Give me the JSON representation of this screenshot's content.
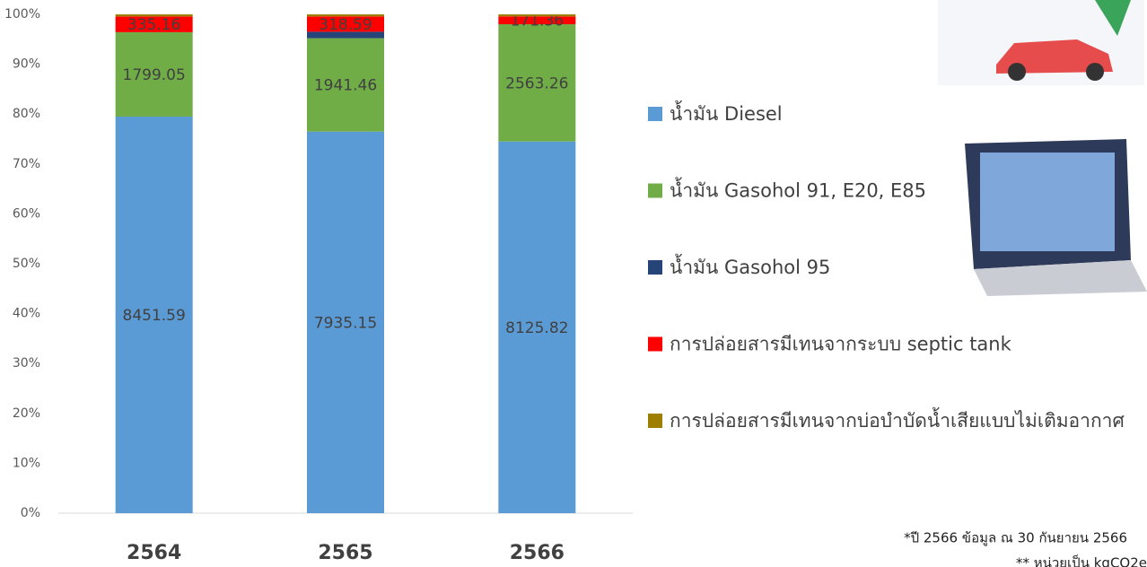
{
  "chart_data": {
    "type": "stacked-percent-bar",
    "categories": [
      "2564",
      "2565",
      "2566"
    ],
    "series": [
      {
        "name": "น้ำมัน Diesel",
        "color": "#5b9bd5",
        "values": [
          8451.59,
          7935.15,
          8125.82
        ],
        "show_labels": true
      },
      {
        "name": "น้ำมัน Gasohol 91, E20, E85",
        "color": "#70ad47",
        "values": [
          1799.05,
          1941.46,
          2563.26
        ],
        "show_labels": true
      },
      {
        "name": "น้ำมัน Gasohol 95",
        "color": "#264478",
        "values": [
          0,
          135,
          0
        ],
        "show_labels": false
      },
      {
        "name": "การปล่อยสารมีเทนจากระบบ septic tank",
        "color": "#ff0000",
        "values": [
          335.16,
          318.59,
          171.36
        ],
        "show_labels": true
      },
      {
        "name": "การปล่อยสารมีเทนจากบ่อบำบัดน้ำเสียแบบไม่เติมอากาศ",
        "color": "#9e7e00",
        "values": [
          45,
          43,
          45
        ],
        "show_labels": false
      }
    ],
    "ylim": [
      0,
      100
    ],
    "yticks": [
      {
        "value": 0,
        "label": "0%"
      },
      {
        "value": 10,
        "label": "10%"
      },
      {
        "value": 20,
        "label": "20%"
      },
      {
        "value": 30,
        "label": "30%"
      },
      {
        "value": 40,
        "label": "40%"
      },
      {
        "value": 50,
        "label": "50%"
      },
      {
        "value": 60,
        "label": "60%"
      },
      {
        "value": 70,
        "label": "70%"
      },
      {
        "value": 80,
        "label": "80%"
      },
      {
        "value": 90,
        "label": "90%"
      },
      {
        "value": 100,
        "label": "100%"
      }
    ],
    "grid": false,
    "legend": "right",
    "notes": [
      "*ปี 2566 ข้อมูล ณ 30 กันยายน 2566",
      "** หน่วยเป็น kgCO2e"
    ]
  }
}
